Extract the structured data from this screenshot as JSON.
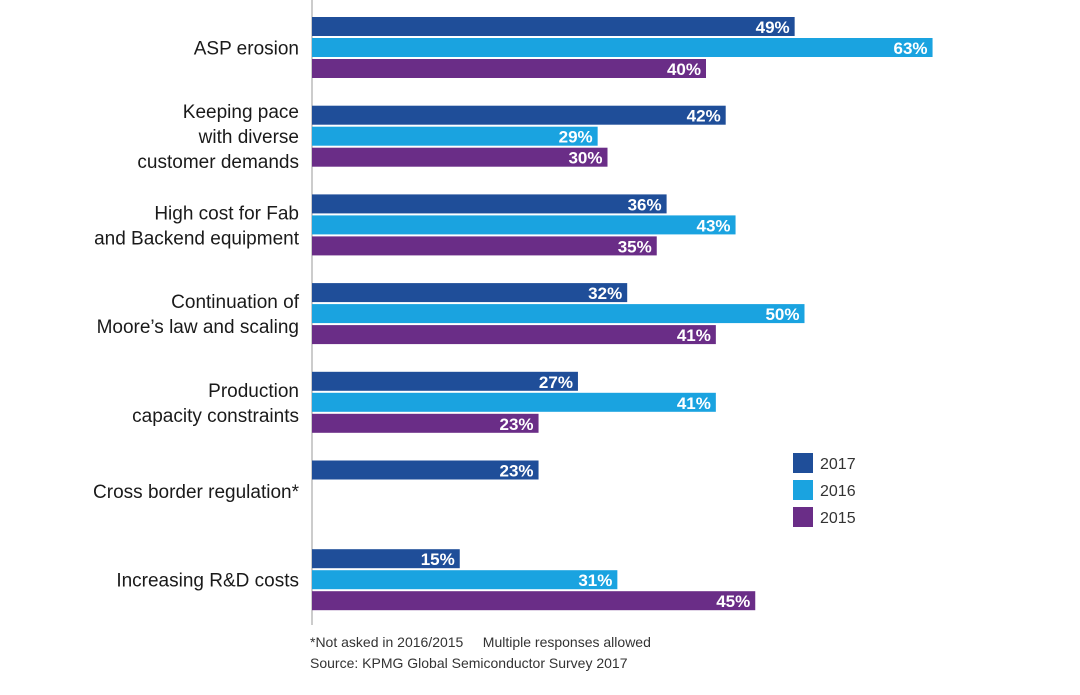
{
  "chart_data": {
    "type": "bar",
    "orientation": "horizontal",
    "categories": [
      [
        "ASP erosion"
      ],
      [
        "Keeping pace",
        "with diverse",
        "customer demands"
      ],
      [
        "High cost for Fab",
        "and Backend equipment"
      ],
      [
        "Continuation of",
        "Moore’s law and scaling"
      ],
      [
        "Production",
        "capacity constraints"
      ],
      [
        "Cross border regulation*"
      ],
      [
        "Increasing R&D costs"
      ]
    ],
    "series": [
      {
        "name": "2017",
        "color": "#1f4e99",
        "values": [
          49,
          42,
          36,
          32,
          27,
          23,
          15
        ]
      },
      {
        "name": "2016",
        "color": "#1aa3e0",
        "values": [
          63,
          29,
          43,
          50,
          41,
          null,
          31
        ]
      },
      {
        "name": "2015",
        "color": "#6a2d87",
        "values": [
          40,
          30,
          35,
          41,
          23,
          null,
          45
        ]
      }
    ],
    "value_suffix": "%",
    "xlim": [
      0,
      100
    ],
    "legend_position": "right",
    "grid": false
  },
  "footnotes": {
    "note": "*Not asked in 2016/2015     Multiple responses allowed",
    "source": "Source: KPMG Global Semiconductor Survey 2017"
  }
}
